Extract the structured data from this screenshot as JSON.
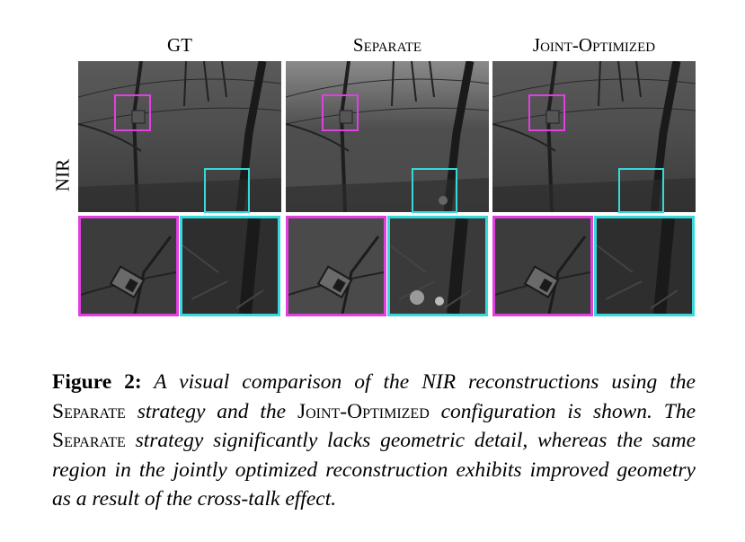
{
  "columns": [
    {
      "title": "GT"
    },
    {
      "title": "Separate"
    },
    {
      "title": "Joint-Optimized"
    }
  ],
  "row_label": "NIR",
  "caption": {
    "label": "Figure 2:",
    "seg1": " A visual comparison of the NIR reconstructions using the ",
    "sep1": "Separate",
    "seg2": " strategy and the ",
    "joint": "Joint-Optimized",
    "seg3": " configuration is shown. The ",
    "sep2": "Separate",
    "seg4": " strategy significantly lacks geometric detail, whereas the same region in the jointly optimized reconstruction exhibits improved geometry as a result of the cross-talk effect."
  },
  "colors": {
    "magenta": "#e040e0",
    "cyan": "#38d8d8"
  }
}
